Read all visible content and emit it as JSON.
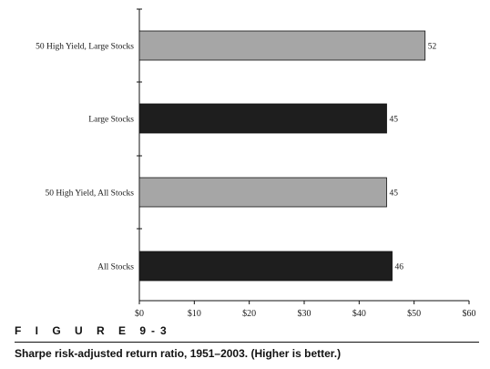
{
  "chart_data": {
    "type": "bar",
    "orientation": "horizontal",
    "categories": [
      "50 High Yield, Large Stocks",
      "Large Stocks",
      "50 High Yield, All Stocks",
      "All Stocks"
    ],
    "values": [
      52,
      45,
      45,
      46
    ],
    "value_labels": [
      "52",
      "45",
      "45",
      "46"
    ],
    "xticks": [
      0,
      10,
      20,
      30,
      40,
      50,
      60
    ],
    "xtick_labels": [
      "$0",
      "$10",
      "$20",
      "$30",
      "$40",
      "$50",
      "$60"
    ],
    "xlim": [
      0,
      60
    ],
    "bar_colors": [
      "#a6a6a6",
      "#1e1e1e",
      "#a6a6a6",
      "#1e1e1e"
    ],
    "grid": false
  },
  "figure": {
    "label": "F I G U R E   9-3",
    "caption": "Sharpe risk-adjusted return ratio, 1951–2003. (Higher is better.)"
  }
}
